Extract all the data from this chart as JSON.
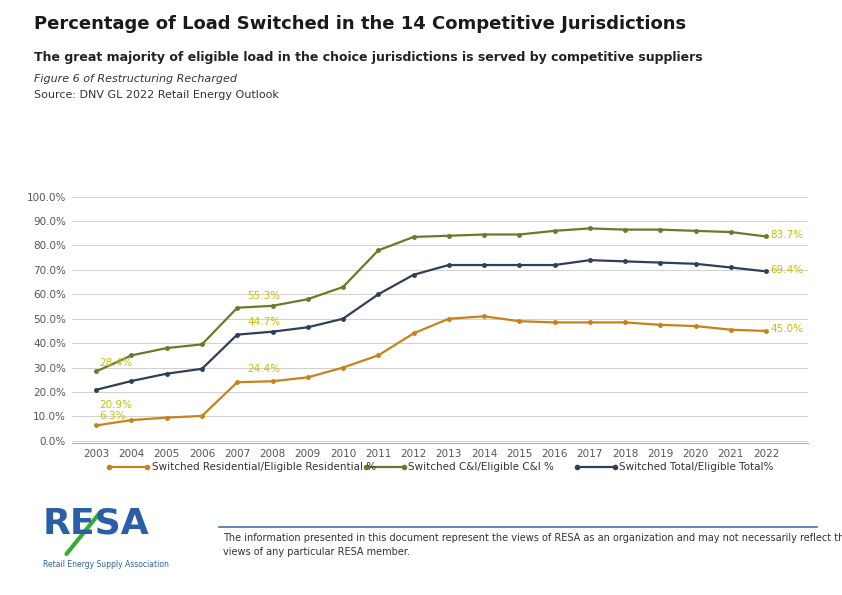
{
  "title": "Percentage of Load Switched in the 14 Competitive Jurisdictions",
  "subtitle": "The great majority of eligible load in the choice jurisdictions is served by competitive suppliers",
  "figure_label": "Figure 6 of Restructuring Recharged",
  "source": "Source: DNV GL 2022 Retail Energy Outlook",
  "years": [
    2003,
    2004,
    2005,
    2006,
    2007,
    2008,
    2009,
    2010,
    2011,
    2012,
    2013,
    2014,
    2015,
    2016,
    2017,
    2018,
    2019,
    2020,
    2021,
    2022
  ],
  "residential": [
    6.3,
    8.5,
    9.5,
    10.2,
    24.0,
    24.4,
    26.0,
    30.0,
    35.0,
    44.0,
    50.0,
    51.0,
    49.0,
    48.5,
    48.5,
    48.5,
    47.5,
    47.0,
    45.5,
    45.0
  ],
  "ci": [
    28.4,
    35.0,
    38.0,
    39.5,
    54.5,
    55.3,
    58.0,
    63.0,
    78.0,
    83.5,
    84.0,
    84.5,
    84.5,
    86.0,
    87.0,
    86.5,
    86.5,
    86.0,
    85.5,
    83.7
  ],
  "total": [
    20.9,
    24.5,
    27.5,
    29.5,
    43.5,
    44.7,
    46.5,
    50.0,
    60.0,
    68.0,
    72.0,
    72.0,
    72.0,
    72.0,
    74.0,
    73.5,
    73.0,
    72.5,
    71.0,
    69.4
  ],
  "residential_color": "#c8821a",
  "ci_color": "#6b7a2a",
  "total_color": "#2e4057",
  "annotation_color": "#c8c000",
  "legend_residential": "Switched Residential/Eligible Residential %",
  "legend_ci": "Switched C&I/Eligible C&I %",
  "legend_total": "Switched Total/Eligible Total%",
  "yticks": [
    0.0,
    0.1,
    0.2,
    0.3,
    0.4,
    0.5,
    0.6,
    0.7,
    0.8,
    0.9,
    1.0
  ],
  "ytick_labels": [
    "0.0%",
    "10.0%",
    "20.0%",
    "30.0%",
    "40.0%",
    "50.0%",
    "60.0%",
    "70.0%",
    "80.0%",
    "90.0%",
    "100.0%"
  ],
  "disclaimer": "The information presented in this document represent the views of RESA as an organization and may not necessarily reflect the\nviews of any particular RESA member.",
  "background_color": "#ffffff",
  "grid_color": "#d0d0d0",
  "separator_color": "#4472a8",
  "footer_text_color": "#555555",
  "resa_color": "#2a5fa5",
  "resa_subtext_color": "#2a5fa5"
}
